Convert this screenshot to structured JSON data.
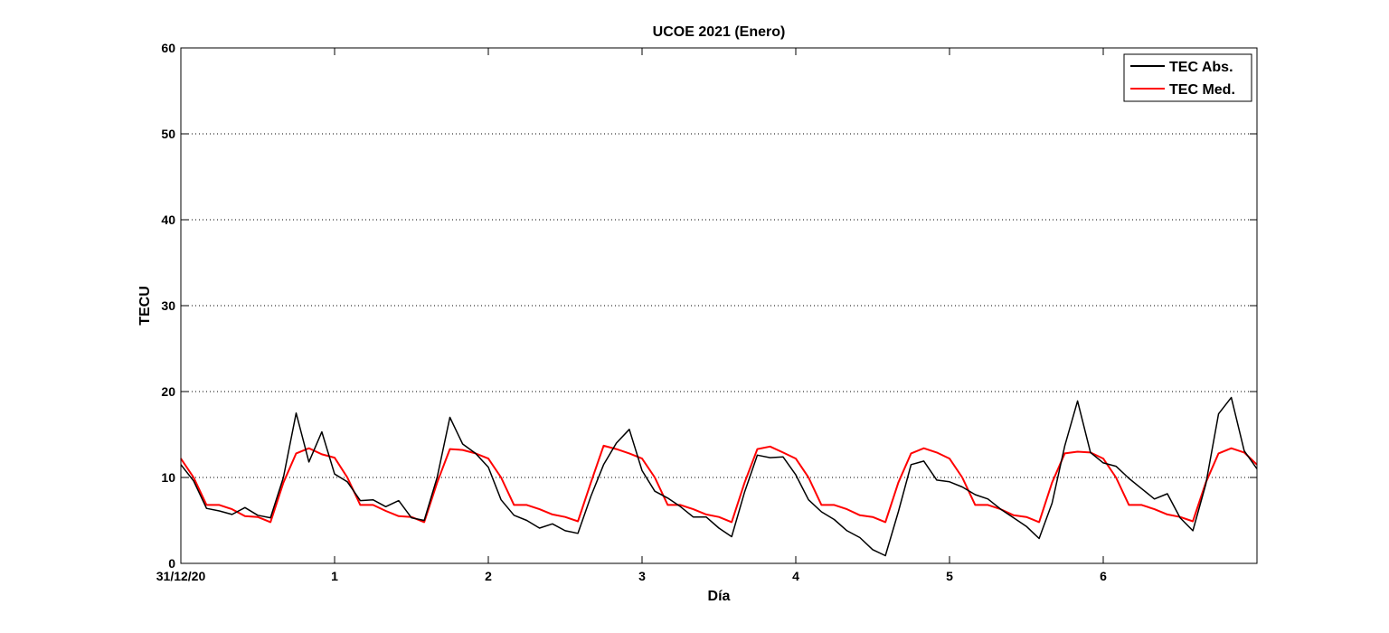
{
  "chart_data": {
    "type": "line",
    "title": "UCOE 2021 (Enero)",
    "xlabel": "Día",
    "ylabel": "TECU",
    "xlim": [
      0,
      7
    ],
    "ylim": [
      0,
      60
    ],
    "x_ticks": [
      0,
      1,
      2,
      3,
      4,
      5,
      6
    ],
    "x_tick_labels": [
      "31/12/20",
      "1",
      "2",
      "3",
      "4",
      "5",
      "6"
    ],
    "y_ticks": [
      0,
      10,
      20,
      30,
      40,
      50,
      60
    ],
    "y_tick_labels": [
      "0",
      "10",
      "20",
      "30",
      "40",
      "50",
      "60"
    ],
    "grid": "horizontal dotted",
    "legend_position": "top-right",
    "series": [
      {
        "name": "TEC Abs.",
        "color": "#000000",
        "x": [
          0,
          0.083,
          0.167,
          0.25,
          0.333,
          0.417,
          0.5,
          0.583,
          0.667,
          0.75,
          0.833,
          0.917,
          1.0,
          1.083,
          1.167,
          1.25,
          1.333,
          1.417,
          1.5,
          1.583,
          1.667,
          1.75,
          1.833,
          1.917,
          2.0,
          2.083,
          2.167,
          2.25,
          2.333,
          2.417,
          2.5,
          2.583,
          2.667,
          2.75,
          2.833,
          2.917,
          3.0,
          3.083,
          3.167,
          3.25,
          3.333,
          3.417,
          3.5,
          3.583,
          3.667,
          3.75,
          3.833,
          3.917,
          4.0,
          4.083,
          4.167,
          4.25,
          4.333,
          4.417,
          4.5,
          4.583,
          4.667,
          4.75,
          4.833,
          4.917,
          5.0,
          5.083,
          5.167,
          5.25,
          5.333,
          5.417,
          5.5,
          5.583,
          5.667,
          5.75,
          5.833,
          5.917,
          6.0,
          6.083,
          6.167,
          6.25,
          6.333,
          6.417,
          6.5,
          6.583,
          6.667,
          6.75,
          6.833,
          6.917,
          7.0
        ],
        "y": [
          11.5,
          9.6,
          6.4,
          6.1,
          5.7,
          6.5,
          5.6,
          5.3,
          10.0,
          17.5,
          11.8,
          15.3,
          10.4,
          9.5,
          7.3,
          7.4,
          6.6,
          7.3,
          5.3,
          5.0,
          10.0,
          17.0,
          13.9,
          12.8,
          11.2,
          7.4,
          5.6,
          5.0,
          4.1,
          4.6,
          3.8,
          3.5,
          7.8,
          11.5,
          14.0,
          15.6,
          10.8,
          8.4,
          7.6,
          6.6,
          5.4,
          5.4,
          4.1,
          3.1,
          8.3,
          12.6,
          12.3,
          12.4,
          10.3,
          7.4,
          6.0,
          5.1,
          3.8,
          3.0,
          1.6,
          0.9,
          6.0,
          11.5,
          11.9,
          9.7,
          9.5,
          8.9,
          8.0,
          7.5,
          6.3,
          5.3,
          4.3,
          2.9,
          7.0,
          13.7,
          18.9,
          12.9,
          11.7,
          11.3,
          9.9,
          8.7,
          7.5,
          8.1,
          5.3,
          3.8,
          9.2,
          17.4,
          19.3,
          13.1,
          11.0
        ]
      },
      {
        "name": "TEC Med.",
        "color": "#ff0000",
        "x": [
          0,
          0.083,
          0.167,
          0.25,
          0.333,
          0.417,
          0.5,
          0.583,
          0.667,
          0.75,
          0.833,
          0.917,
          1.0,
          1.083,
          1.167,
          1.25,
          1.333,
          1.417,
          1.5,
          1.583,
          1.667,
          1.75,
          1.833,
          1.917,
          2.0,
          2.083,
          2.167,
          2.25,
          2.333,
          2.417,
          2.5,
          2.583,
          2.667,
          2.75,
          2.833,
          2.917,
          3.0,
          3.083,
          3.167,
          3.25,
          3.333,
          3.417,
          3.5,
          3.583,
          3.667,
          3.75,
          3.833,
          3.917,
          4.0,
          4.083,
          4.167,
          4.25,
          4.333,
          4.417,
          4.5,
          4.583,
          4.667,
          4.75,
          4.833,
          4.917,
          5.0,
          5.083,
          5.167,
          5.25,
          5.333,
          5.417,
          5.5,
          5.583,
          5.667,
          5.75,
          5.833,
          5.917,
          6.0,
          6.083,
          6.167,
          6.25,
          6.333,
          6.417,
          6.5,
          6.583,
          6.667,
          6.75,
          6.833,
          6.917,
          7.0
        ],
        "y": [
          12.2,
          10.0,
          6.8,
          6.8,
          6.3,
          5.5,
          5.4,
          4.8,
          9.4,
          12.8,
          13.4,
          12.7,
          12.3,
          10.0,
          6.8,
          6.8,
          6.1,
          5.5,
          5.4,
          4.8,
          9.4,
          13.3,
          13.2,
          12.8,
          12.2,
          10.0,
          6.8,
          6.8,
          6.3,
          5.7,
          5.4,
          4.9,
          9.4,
          13.7,
          13.3,
          12.8,
          12.2,
          10.0,
          6.8,
          6.8,
          6.3,
          5.7,
          5.4,
          4.8,
          9.4,
          13.3,
          13.6,
          12.9,
          12.2,
          10.0,
          6.8,
          6.8,
          6.3,
          5.6,
          5.4,
          4.8,
          9.4,
          12.8,
          13.4,
          12.9,
          12.2,
          10.0,
          6.8,
          6.8,
          6.3,
          5.6,
          5.4,
          4.8,
          9.4,
          12.8,
          13.0,
          12.9,
          12.2,
          10.0,
          6.8,
          6.8,
          6.3,
          5.7,
          5.4,
          4.9,
          9.4,
          12.8,
          13.4,
          12.9,
          11.5
        ]
      }
    ]
  }
}
